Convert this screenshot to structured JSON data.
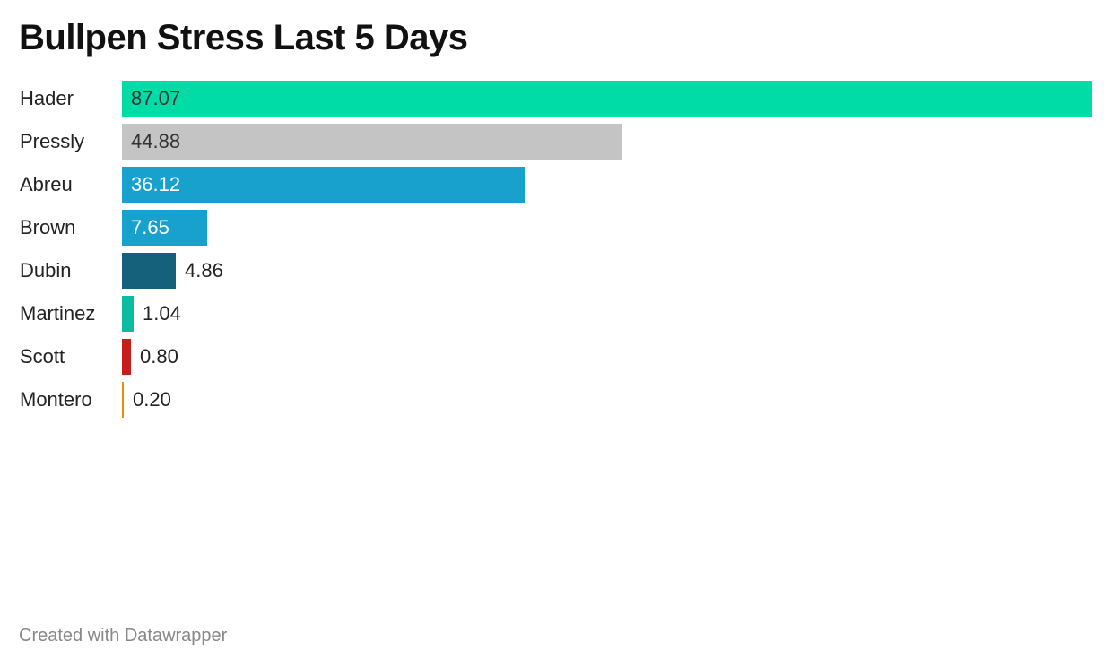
{
  "footer": "Created with Datawrapper",
  "chart_data": {
    "type": "bar",
    "orientation": "horizontal",
    "title": "Bullpen Stress Last 5 Days",
    "xlabel": "",
    "ylabel": "",
    "grid": false,
    "categories": [
      "Hader",
      "Pressly",
      "Abreu",
      "Brown",
      "Dubin",
      "Martinez",
      "Scott",
      "Montero"
    ],
    "values": [
      87.07,
      44.88,
      36.12,
      7.65,
      4.86,
      1.04,
      0.8,
      0.2
    ],
    "value_labels": [
      "87.07",
      "44.88",
      "36.12",
      "7.65",
      "4.86",
      "1.04",
      "0.80",
      "0.20"
    ],
    "colors": [
      "#00dca6",
      "#c4c4c4",
      "#18a1cd",
      "#18a1cd",
      "#15607a",
      "#09bb9f",
      "#c71e1d",
      "#eb8e00"
    ],
    "label_colors": [
      "#333333",
      "#333333",
      "#ffffff",
      "#ffffff",
      "#222222",
      "#222222",
      "#222222",
      "#222222"
    ],
    "xlim": [
      0,
      87.07
    ]
  }
}
